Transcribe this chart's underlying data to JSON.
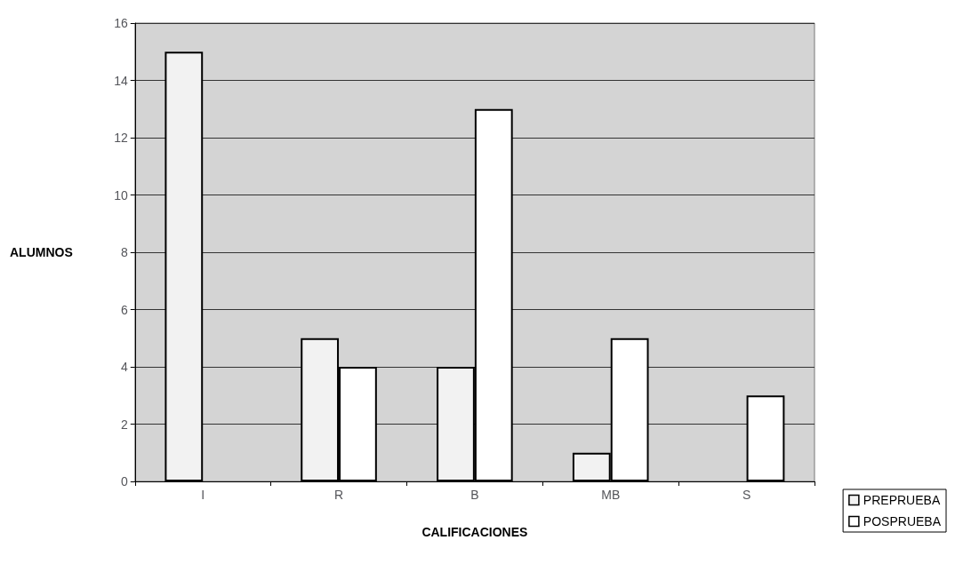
{
  "chart_data": {
    "type": "bar",
    "xlabel": "CALIFICACIONES",
    "ylabel": "ALUMNOS",
    "categories": [
      "I",
      "R",
      "B",
      "MB",
      "S"
    ],
    "series": [
      {
        "name": "PREPRUEBA",
        "color": "#f2f2f2",
        "values": [
          15,
          5,
          4,
          1,
          0
        ]
      },
      {
        "name": "POSPRUEBA",
        "color": "#ffffff",
        "values": [
          0,
          4,
          13,
          5,
          3
        ]
      }
    ],
    "ylim": [
      0,
      16
    ],
    "yticks": [
      0,
      2,
      4,
      6,
      8,
      10,
      12,
      14,
      16
    ],
    "grid": "y",
    "legend": "bottom right"
  }
}
